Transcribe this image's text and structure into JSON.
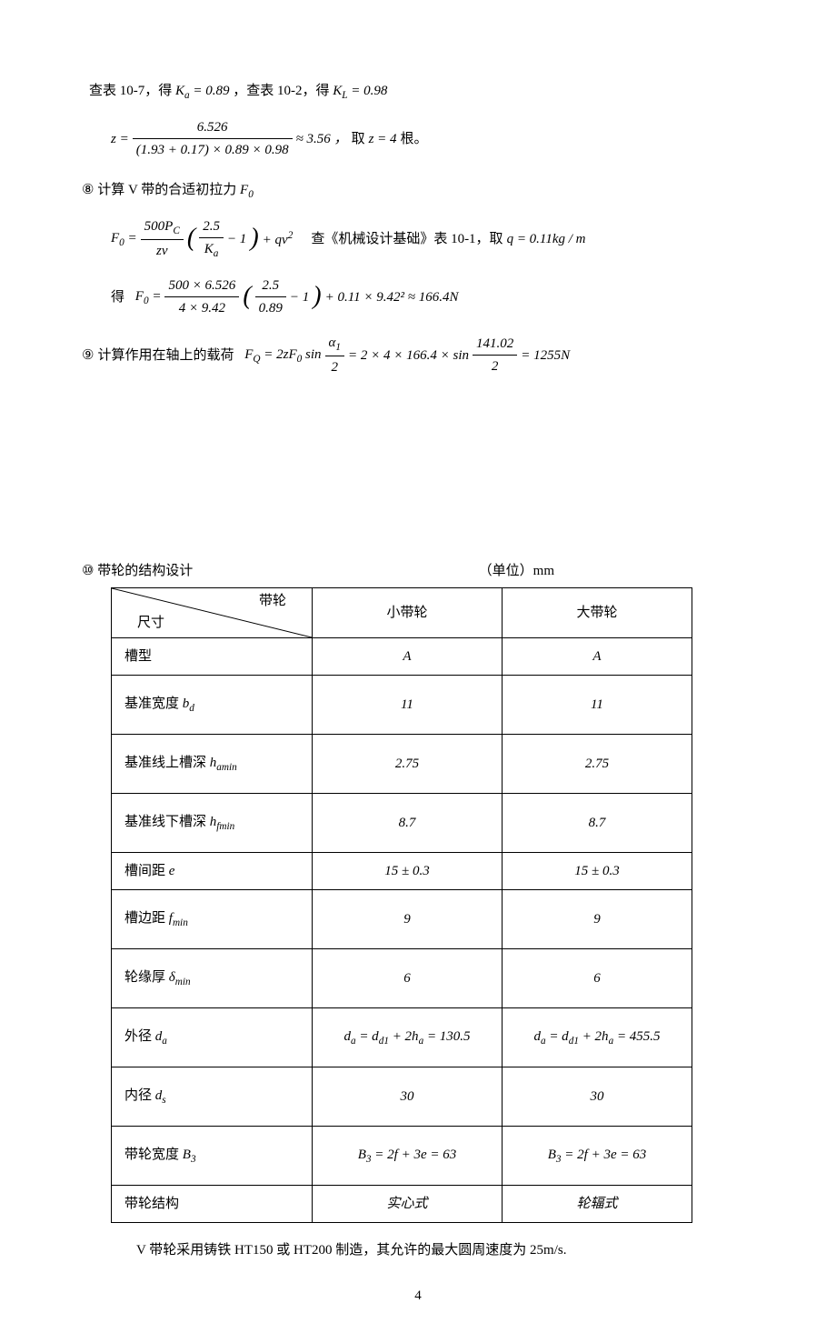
{
  "line1": {
    "a": "查表 10-7，得",
    "ka": "Kₐ = 0.89",
    "b": "，查表 10-2，得",
    "kl": "K_L = 0.98"
  },
  "eq_z": {
    "lhs": "z =",
    "num": "6.526",
    "den": "(1.93 + 0.17) × 0.89 × 0.98",
    "approx": "≈ 3.56 ，",
    "tail_cn": "取",
    "tail_eq": "z = 4",
    "tail_unit": "根。"
  },
  "step8": {
    "marker": "⑧",
    "text": "计算 V 带的合适初拉力",
    "sym": "F₀"
  },
  "eq_f0a": {
    "lhs": "F₀ =",
    "num1": "500Pᶜ",
    "den1": "zv",
    "paren_num": "2.5",
    "paren_den": "Kₐ",
    "paren_tail": "− 1",
    "plus": "+ qv²",
    "ref_cn": "查《机械设计基础》表 10-1，取",
    "ref_eq": "q = 0.11kg / m"
  },
  "eq_f0b": {
    "pre": "得",
    "lhs": "F₀ =",
    "num1": "500 × 6.526",
    "den1": "4 × 9.42",
    "paren_num": "2.5",
    "paren_den": "0.89",
    "paren_tail": "− 1",
    "tail": "+ 0.11 × 9.42² ≈ 166.4N"
  },
  "step9": {
    "marker": "⑨",
    "text": "计算作用在轴上的载荷",
    "lhs": "F_Q = 2zF₀ sin",
    "num1": "α₁",
    "den1": "2",
    "mid": "= 2 × 4 × 166.4 × sin",
    "num2": "141.02",
    "den2": "2",
    "tail": "= 1255N"
  },
  "step10": {
    "marker": "⑩",
    "text": "带轮的结构设计",
    "unit": "（单位）mm"
  },
  "table": {
    "diag_top": "带轮",
    "diag_bot": "尺寸",
    "col1": "小带轮",
    "col2": "大带轮",
    "rows": [
      {
        "label_cn": "槽型",
        "sym": "",
        "v1": "A",
        "v2": "A",
        "tall": false
      },
      {
        "label_cn": "基准宽度",
        "sym": "b_d",
        "v1": "11",
        "v2": "11",
        "tall": true
      },
      {
        "label_cn": "基准线上槽深",
        "sym": "h_{a\\min}",
        "v1": "2.75",
        "v2": "2.75",
        "tall": true
      },
      {
        "label_cn": "基准线下槽深",
        "sym": "h_{f\\min}",
        "v1": "8.7",
        "v2": "8.7",
        "tall": true
      },
      {
        "label_cn": "槽间距",
        "sym": "e",
        "v1": "15 ± 0.3",
        "v2": "15 ± 0.3",
        "tall": false
      },
      {
        "label_cn": "槽边距",
        "sym": "f_{min}",
        "v1": "9",
        "v2": "9",
        "tall": true
      },
      {
        "label_cn": "轮缘厚",
        "sym": "δ_{min}",
        "v1": "6",
        "v2": "6",
        "tall": true
      },
      {
        "label_cn": "外径",
        "sym": "d_a",
        "v1": "d_a = d_{d1} + 2h_a = 130.5",
        "v2": "d_a = d_{d1} + 2h_a = 455.5",
        "tall": true
      },
      {
        "label_cn": "内径",
        "sym": "d_s",
        "v1": "30",
        "v2": "30",
        "tall": true
      },
      {
        "label_cn": "带轮宽度",
        "sym": "B_3",
        "v1": "B_3 = 2f + 3e = 63",
        "v2": "B_3 = 2f + 3e = 63",
        "tall": true
      },
      {
        "label_cn": "带轮结构",
        "sym": "",
        "v1": "实心式",
        "v2": "轮辐式",
        "tall": false
      }
    ]
  },
  "footer": "V 带轮采用铸铁 HT150 或 HT200 制造，其允许的最大圆周速度为 25m/s.",
  "page": "4"
}
